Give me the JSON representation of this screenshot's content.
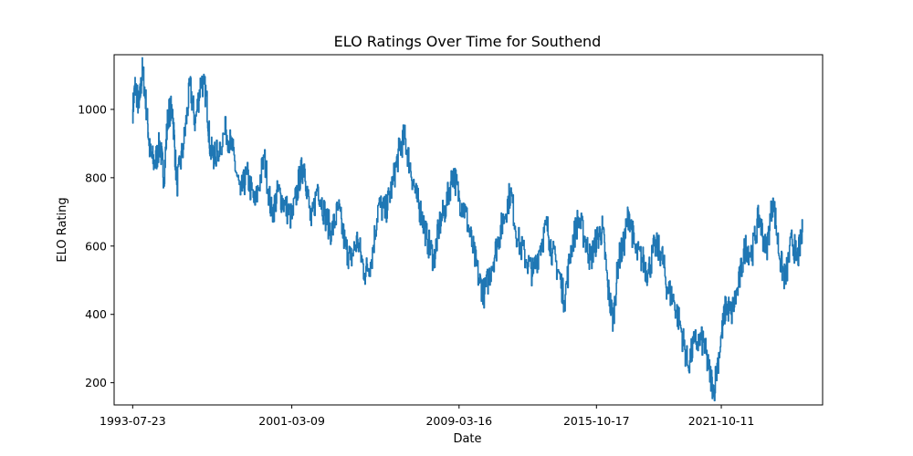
{
  "chart_data": {
    "type": "line",
    "title": "ELO Ratings Over Time for Southend",
    "xlabel": "Date",
    "ylabel": "ELO Rating",
    "x_range": [
      "1992-09-01",
      "2026-08-20"
    ],
    "y_range": [
      135,
      1160
    ],
    "x_ticks": [
      "1993-07-23",
      "2001-03-09",
      "2009-03-16",
      "2015-10-17",
      "2021-10-11"
    ],
    "y_ticks": [
      200,
      400,
      600,
      800,
      1000
    ],
    "grid": false,
    "line_color": "#1f77b4",
    "series": [
      {
        "points": [
          [
            "1993-07-23",
            1000
          ],
          [
            "1993-09-05",
            1070
          ],
          [
            "1993-11-10",
            1005
          ],
          [
            "1994-01-10",
            1120
          ],
          [
            "1994-04-01",
            980
          ],
          [
            "1994-05-20",
            870
          ],
          [
            "1994-08-10",
            840
          ],
          [
            "1994-11-10",
            900
          ],
          [
            "1995-01-20",
            800
          ],
          [
            "1995-04-01",
            990
          ],
          [
            "1995-06-20",
            1000
          ],
          [
            "1995-09-01",
            780
          ],
          [
            "1996-01-01",
            900
          ],
          [
            "1996-04-20",
            1070
          ],
          [
            "1996-07-20",
            960
          ],
          [
            "1996-11-01",
            1090
          ],
          [
            "1997-02-01",
            1040
          ],
          [
            "1997-04-10",
            880
          ],
          [
            "1997-07-01",
            860
          ],
          [
            "1998-01-10",
            940
          ],
          [
            "1998-05-01",
            880
          ],
          [
            "1998-09-20",
            750
          ],
          [
            "1999-01-10",
            810
          ],
          [
            "1999-06-01",
            720
          ],
          [
            "1999-11-10",
            860
          ],
          [
            "2000-03-20",
            690
          ],
          [
            "2000-07-10",
            760
          ],
          [
            "2000-11-01",
            720
          ],
          [
            "2001-03-09",
            680
          ],
          [
            "2001-07-20",
            800
          ],
          [
            "2001-10-10",
            840
          ],
          [
            "2002-02-10",
            660
          ],
          [
            "2002-06-01",
            780
          ],
          [
            "2002-10-10",
            690
          ],
          [
            "2003-02-01",
            640
          ],
          [
            "2003-06-01",
            710
          ],
          [
            "2003-10-01",
            600
          ],
          [
            "2004-01-01",
            560
          ],
          [
            "2004-05-01",
            620
          ],
          [
            "2004-09-01",
            520
          ],
          [
            "2005-01-01",
            560
          ],
          [
            "2005-05-01",
            720
          ],
          [
            "2005-09-01",
            700
          ],
          [
            "2006-01-01",
            780
          ],
          [
            "2006-05-01",
            880
          ],
          [
            "2006-08-01",
            920
          ],
          [
            "2006-11-01",
            840
          ],
          [
            "2007-03-01",
            740
          ],
          [
            "2007-06-01",
            690
          ],
          [
            "2007-09-01",
            620
          ],
          [
            "2008-01-01",
            560
          ],
          [
            "2008-04-01",
            660
          ],
          [
            "2008-08-01",
            720
          ],
          [
            "2008-12-01",
            820
          ],
          [
            "2009-03-16",
            740
          ],
          [
            "2009-07-01",
            700
          ],
          [
            "2009-11-01",
            600
          ],
          [
            "2010-03-01",
            500
          ],
          [
            "2010-06-01",
            460
          ],
          [
            "2010-10-01",
            540
          ],
          [
            "2011-02-01",
            620
          ],
          [
            "2011-05-01",
            680
          ],
          [
            "2011-09-01",
            760
          ],
          [
            "2012-01-01",
            620
          ],
          [
            "2012-06-01",
            560
          ],
          [
            "2012-10-01",
            520
          ],
          [
            "2013-02-01",
            600
          ],
          [
            "2013-06-01",
            660
          ],
          [
            "2013-09-01",
            580
          ],
          [
            "2014-01-01",
            520
          ],
          [
            "2014-04-01",
            440
          ],
          [
            "2014-08-01",
            600
          ],
          [
            "2014-12-01",
            680
          ],
          [
            "2015-04-01",
            620
          ],
          [
            "2015-07-01",
            560
          ],
          [
            "2015-10-17",
            620
          ],
          [
            "2016-02-01",
            650
          ],
          [
            "2016-05-01",
            480
          ],
          [
            "2016-08-01",
            380
          ],
          [
            "2016-11-01",
            560
          ],
          [
            "2017-02-01",
            600
          ],
          [
            "2017-05-01",
            700
          ],
          [
            "2017-09-01",
            580
          ],
          [
            "2018-01-01",
            560
          ],
          [
            "2018-04-01",
            520
          ],
          [
            "2018-08-01",
            600
          ],
          [
            "2018-12-01",
            580
          ],
          [
            "2019-03-01",
            480
          ],
          [
            "2019-07-01",
            440
          ],
          [
            "2019-11-01",
            360
          ],
          [
            "2020-03-01",
            250
          ],
          [
            "2020-07-01",
            320
          ],
          [
            "2020-12-01",
            320
          ],
          [
            "2021-03-01",
            240
          ],
          [
            "2021-06-01",
            180
          ],
          [
            "2021-10-11",
            340
          ],
          [
            "2022-01-01",
            430
          ],
          [
            "2022-04-01",
            400
          ],
          [
            "2022-08-01",
            480
          ],
          [
            "2022-12-01",
            600
          ],
          [
            "2023-04-01",
            580
          ],
          [
            "2023-08-01",
            690
          ],
          [
            "2023-12-01",
            580
          ],
          [
            "2024-04-01",
            740
          ],
          [
            "2024-08-01",
            560
          ],
          [
            "2024-11-01",
            500
          ],
          [
            "2025-03-01",
            620
          ],
          [
            "2025-06-01",
            560
          ],
          [
            "2025-09-01",
            640
          ]
        ]
      }
    ]
  }
}
